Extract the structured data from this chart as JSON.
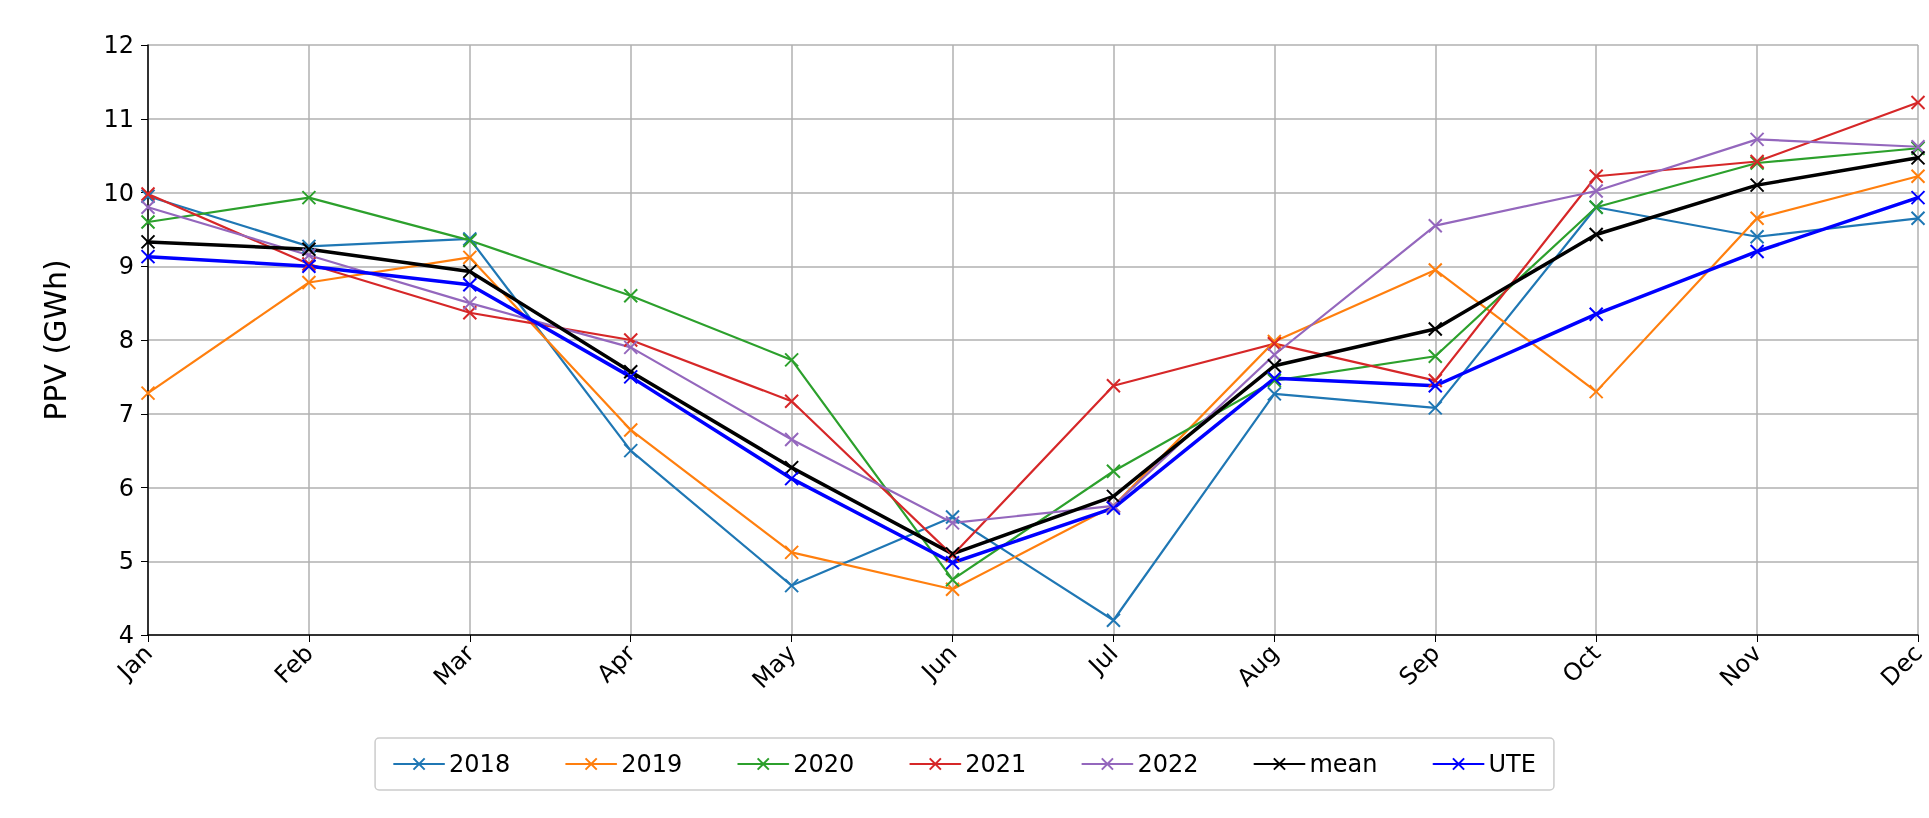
{
  "chart_data": {
    "type": "line",
    "ylabel": "PPV (GWh)",
    "categories": [
      "Jan",
      "Feb",
      "Mar",
      "Apr",
      "May",
      "Jun",
      "Jul",
      "Aug",
      "Sep",
      "Oct",
      "Nov",
      "Dec"
    ],
    "ylim": [
      4,
      12
    ],
    "yticks": [
      4,
      5,
      6,
      7,
      8,
      9,
      10,
      11,
      12
    ],
    "grid": true,
    "legend": "bottom",
    "marker": "cross",
    "line_style": "solid",
    "series": [
      {
        "name": "2018",
        "color": "#1f77b4",
        "values": [
          9.95,
          9.27,
          9.37,
          6.5,
          4.67,
          5.6,
          4.2,
          7.27,
          7.08,
          9.8,
          9.4,
          9.65
        ]
      },
      {
        "name": "2019",
        "color": "#ff7f0e",
        "values": [
          7.28,
          8.78,
          9.12,
          6.78,
          5.12,
          4.62,
          5.75,
          7.98,
          8.95,
          7.3,
          9.65,
          10.22
        ]
      },
      {
        "name": "2020",
        "color": "#2ca02c",
        "values": [
          9.6,
          9.93,
          9.35,
          8.6,
          7.73,
          4.75,
          6.22,
          7.45,
          7.78,
          9.8,
          10.4,
          10.6
        ]
      },
      {
        "name": "2021",
        "color": "#d62728",
        "values": [
          9.98,
          9.03,
          8.37,
          8.0,
          7.17,
          5.08,
          7.38,
          7.95,
          7.45,
          10.22,
          10.42,
          11.22
        ]
      },
      {
        "name": "2022",
        "color": "#9467bd",
        "values": [
          9.8,
          9.15,
          8.5,
          7.9,
          6.65,
          5.52,
          5.75,
          7.8,
          9.55,
          10.02,
          10.72,
          10.62
        ]
      },
      {
        "name": "mean",
        "color": "#000000",
        "values": [
          9.33,
          9.23,
          8.93,
          7.57,
          6.27,
          5.1,
          5.88,
          7.65,
          8.15,
          9.43,
          10.1,
          10.47
        ]
      },
      {
        "name": "UTE",
        "color": "#0000ff",
        "values": [
          9.13,
          9.0,
          8.75,
          7.5,
          6.12,
          4.98,
          5.72,
          7.48,
          7.38,
          8.35,
          9.2,
          9.93
        ]
      }
    ]
  }
}
